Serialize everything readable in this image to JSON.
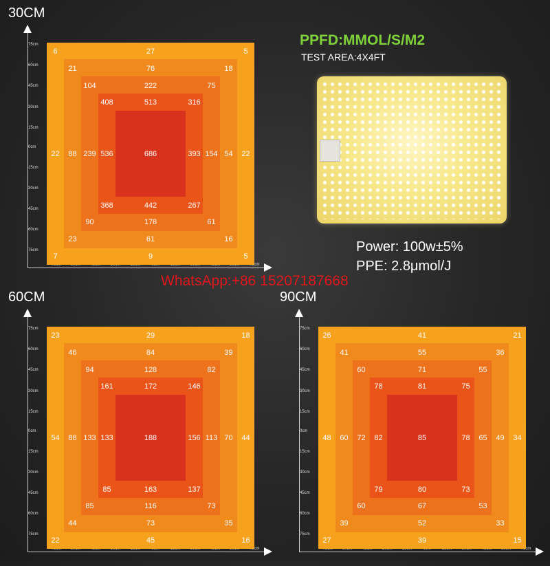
{
  "header": {
    "ppfd_title": "PPFD:MMOL/S/M2",
    "test_area": "TEST AREA:4X4FT"
  },
  "specs": {
    "power": "Power: 100w±5%",
    "ppe": "PPE: 2.8μmol/J"
  },
  "watermark": "WhatsApp:+86 15207187668",
  "colors": {
    "ring_1_outer": "#f6a21d",
    "ring_2": "#f18a1c",
    "ring_3": "#ee711b",
    "ring_4": "#ea5419",
    "ring_5_center": "#d8321c",
    "ppfd_green": "#7fd23a",
    "watermark_red": "#e0171c"
  },
  "chart_data": [
    {
      "type": "heatmap",
      "title": "30CM",
      "x_ticks": [
        "75cm",
        "60cm",
        "45cm",
        "30cm",
        "15cm",
        "0cm",
        "15cm",
        "30cm",
        "45cm",
        "60cm",
        "75cm"
      ],
      "y_ticks": [
        "75cm",
        "60cm",
        "45cm",
        "30cm",
        "15cm",
        "0cm",
        "15cm",
        "30cm",
        "45cm",
        "60cm",
        "75cm"
      ],
      "values": {
        "ring1": {
          "top_left": "6",
          "top": "27",
          "top_right": "5",
          "left": "22",
          "right": "22",
          "bottom_left": "7",
          "bottom": "9",
          "bottom_right": "5"
        },
        "ring2": {
          "top_left": "21",
          "top": "76",
          "top_right": "18",
          "left": "88",
          "right": "54",
          "bottom_left": "23",
          "bottom": "61",
          "bottom_right": "16"
        },
        "ring3": {
          "top_left": "104",
          "top": "222",
          "top_right": "75",
          "left": "239",
          "right": "154",
          "bottom_left": "90",
          "bottom": "178",
          "bottom_right": "61"
        },
        "ring4": {
          "top_left": "408",
          "top": "513",
          "top_right": "316",
          "left": "536",
          "right": "393",
          "bottom_left": "368",
          "bottom": "442",
          "bottom_right": "267"
        },
        "center": "686"
      }
    },
    {
      "type": "heatmap",
      "title": "60CM",
      "x_ticks": [
        "75cm",
        "60cm",
        "45cm",
        "30cm",
        "15cm",
        "0cm",
        "15cm",
        "30cm",
        "45cm",
        "60cm",
        "75cm"
      ],
      "y_ticks": [
        "75cm",
        "60cm",
        "45cm",
        "30cm",
        "15cm",
        "0cm",
        "15cm",
        "30cm",
        "45cm",
        "60cm",
        "75cm"
      ],
      "values": {
        "ring1": {
          "top_left": "23",
          "top": "29",
          "top_right": "18",
          "left": "54",
          "right": "44",
          "bottom_left": "22",
          "bottom": "45",
          "bottom_right": "16"
        },
        "ring2": {
          "top_left": "46",
          "top": "84",
          "top_right": "39",
          "left": "88",
          "right": "70",
          "bottom_left": "44",
          "bottom": "73",
          "bottom_right": "35"
        },
        "ring3": {
          "top_left": "94",
          "top": "128",
          "top_right": "82",
          "left": "133",
          "right": "113",
          "bottom_left": "85",
          "bottom": "116",
          "bottom_right": "73"
        },
        "ring4": {
          "top_left": "161",
          "top": "172",
          "top_right": "146",
          "left": "133",
          "right": "156",
          "bottom_left": "85",
          "bottom": "163",
          "bottom_right": "137"
        },
        "center": "188"
      }
    },
    {
      "type": "heatmap",
      "title": "90CM",
      "x_ticks": [
        "75cm",
        "60cm",
        "45cm",
        "30cm",
        "15cm",
        "0cm",
        "15cm",
        "30cm",
        "45cm",
        "60cm",
        "75cm"
      ],
      "y_ticks": [
        "75cm",
        "60cm",
        "45cm",
        "30cm",
        "15cm",
        "0cm",
        "15cm",
        "30cm",
        "45cm",
        "60cm",
        "75cm"
      ],
      "values": {
        "ring1": {
          "top_left": "26",
          "top": "41",
          "top_right": "21",
          "left": "48",
          "right": "34",
          "bottom_left": "27",
          "bottom": "39",
          "bottom_right": "15"
        },
        "ring2": {
          "top_left": "41",
          "top": "55",
          "top_right": "36",
          "left": "60",
          "right": "49",
          "bottom_left": "39",
          "bottom": "52",
          "bottom_right": "33"
        },
        "ring3": {
          "top_left": "60",
          "top": "71",
          "top_right": "55",
          "left": "72",
          "right": "65",
          "bottom_left": "60",
          "bottom": "67",
          "bottom_right": "53"
        },
        "ring4": {
          "top_left": "78",
          "top": "81",
          "top_right": "75",
          "left": "82",
          "right": "78",
          "bottom_left": "79",
          "bottom": "80",
          "bottom_right": "73"
        },
        "center": "85"
      }
    }
  ]
}
